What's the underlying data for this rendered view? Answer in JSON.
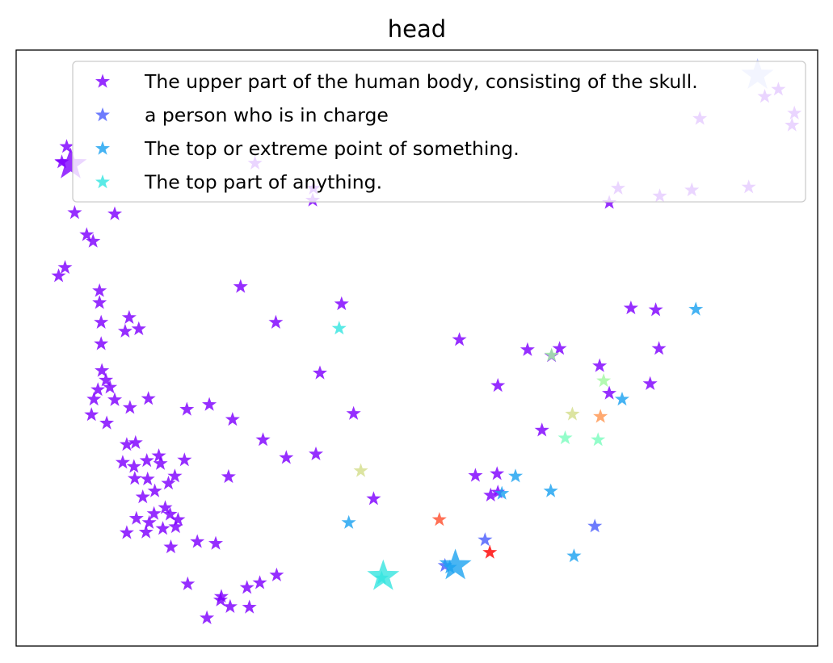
{
  "chart_data": {
    "type": "scatter",
    "title": "head",
    "xlabel": "",
    "ylabel": "",
    "xlim": [
      0,
      100
    ],
    "ylim": [
      0,
      100
    ],
    "grid": false,
    "axis_ticks": false,
    "marker": "star",
    "legend": {
      "placement": "top-right",
      "entries": [
        {
          "label": "The upper part of the human body, consisting of the skull.",
          "color": "#7f00ff"
        },
        {
          "label": "a person who is in charge",
          "color": "#4c5efc"
        },
        {
          "label": "The top or extreme point of something.",
          "color": "#1ca2f0"
        },
        {
          "label": "The top part of anything.",
          "color": "#36e5e0"
        }
      ]
    },
    "colors": {
      "violet": "#7f00ff",
      "blue": "#4c5efc",
      "azure": "#1ca2f0",
      "cyan": "#36e5e0",
      "mint": "#7cfcbe",
      "lightgreen": "#a4f8a0",
      "khaki": "#d4de8c",
      "orange": "#ff9650",
      "redorange": "#ff5030",
      "red": "#ff0000"
    },
    "series": [
      {
        "name": "The upper part of the human body, consisting of the skull.",
        "color": "#7f00ff",
        "points": [
          [
            6.3,
            83.8
          ],
          [
            5.7,
            81.2
          ],
          [
            7.3,
            72.7
          ],
          [
            8.8,
            69.0
          ],
          [
            6.1,
            63.5
          ],
          [
            5.3,
            62.1
          ],
          [
            9.6,
            67.9
          ],
          [
            10.4,
            59.6
          ],
          [
            10.4,
            57.6
          ],
          [
            10.6,
            54.3
          ],
          [
            10.6,
            50.7
          ],
          [
            10.7,
            46.2
          ],
          [
            11.2,
            44.6
          ],
          [
            10.2,
            43.0
          ],
          [
            11.7,
            43.4
          ],
          [
            12.3,
            41.3
          ],
          [
            9.7,
            41.4
          ],
          [
            9.4,
            38.8
          ],
          [
            11.3,
            37.4
          ],
          [
            14.2,
            40.0
          ],
          [
            16.5,
            41.5
          ],
          [
            14.1,
            55.1
          ],
          [
            13.6,
            52.8
          ],
          [
            15.3,
            53.2
          ],
          [
            13.8,
            33.8
          ],
          [
            14.9,
            34.1
          ],
          [
            13.3,
            30.8
          ],
          [
            14.7,
            30.1
          ],
          [
            17.8,
            31.9
          ],
          [
            16.3,
            31.1
          ],
          [
            18.0,
            30.6
          ],
          [
            14.8,
            28.1
          ],
          [
            16.4,
            28.0
          ],
          [
            19.0,
            27.3
          ],
          [
            19.8,
            28.5
          ],
          [
            21.0,
            31.2
          ],
          [
            15.8,
            25.0
          ],
          [
            17.3,
            26.0
          ],
          [
            18.6,
            23.2
          ],
          [
            19.2,
            22.1
          ],
          [
            17.2,
            22.2
          ],
          [
            15.0,
            21.4
          ],
          [
            16.6,
            20.7
          ],
          [
            20.2,
            21.2
          ],
          [
            19.9,
            20.0
          ],
          [
            18.3,
            19.7
          ],
          [
            13.8,
            19.0
          ],
          [
            16.2,
            19.1
          ],
          [
            19.3,
            16.6
          ],
          [
            22.6,
            17.5
          ],
          [
            24.9,
            17.2
          ],
          [
            21.3,
            39.7
          ],
          [
            24.1,
            40.5
          ],
          [
            27.0,
            38.0
          ],
          [
            26.5,
            28.4
          ],
          [
            30.8,
            34.6
          ],
          [
            33.7,
            31.6
          ],
          [
            37.4,
            32.2
          ],
          [
            37.9,
            45.8
          ],
          [
            28.0,
            60.3
          ],
          [
            32.4,
            54.3
          ],
          [
            40.6,
            57.4
          ],
          [
            42.1,
            39.0
          ],
          [
            44.6,
            24.7
          ],
          [
            21.4,
            10.4
          ],
          [
            23.8,
            4.7
          ],
          [
            25.5,
            7.7
          ],
          [
            25.6,
            8.3
          ],
          [
            26.7,
            6.6
          ],
          [
            29.1,
            6.5
          ],
          [
            28.8,
            9.8
          ],
          [
            30.4,
            10.6
          ],
          [
            32.5,
            11.9
          ],
          [
            55.3,
            51.4
          ],
          [
            60.1,
            43.7
          ],
          [
            63.8,
            49.7
          ],
          [
            66.8,
            48.7
          ],
          [
            67.8,
            49.9
          ],
          [
            72.8,
            47.0
          ],
          [
            76.7,
            56.7
          ],
          [
            79.8,
            56.4
          ],
          [
            80.2,
            49.9
          ],
          [
            79.1,
            44.0
          ],
          [
            74.0,
            42.4
          ],
          [
            65.6,
            36.2
          ],
          [
            60.1,
            25.8
          ],
          [
            57.3,
            28.6
          ],
          [
            60.0,
            28.9
          ],
          [
            59.2,
            25.3
          ],
          [
            12.3,
            72.5
          ],
          [
            29.8,
            81.0
          ],
          [
            37.1,
            76.8
          ],
          [
            37.0,
            74.8
          ],
          [
            74.0,
            74.4
          ],
          [
            80.3,
            75.5
          ],
          [
            75.1,
            76.8
          ],
          [
            84.3,
            76.5
          ],
          [
            91.4,
            77.0
          ],
          [
            85.3,
            88.5
          ],
          [
            93.4,
            92.2
          ],
          [
            95.1,
            93.4
          ],
          [
            97.1,
            89.4
          ],
          [
            96.8,
            87.4
          ]
        ]
      },
      {
        "name": "a person who is in charge",
        "color": "#4c5efc",
        "points": [
          [
            58.5,
            17.8
          ],
          [
            72.2,
            20.1
          ],
          [
            53.5,
            13.5
          ]
        ]
      },
      {
        "name": "The top or extreme point of something.",
        "color": "#1ca2f0",
        "points": [
          [
            84.8,
            56.5
          ],
          [
            75.6,
            41.4
          ],
          [
            62.3,
            28.5
          ],
          [
            60.6,
            25.6
          ],
          [
            66.7,
            26.0
          ],
          [
            41.5,
            20.7
          ],
          [
            69.6,
            15.1
          ],
          [
            54.1,
            13.2
          ]
        ]
      },
      {
        "name": "The top part of anything.",
        "color": "#36e5e0",
        "points": [
          [
            40.3,
            53.3
          ],
          [
            45.6,
            11.4
          ]
        ]
      },
      {
        "name": "",
        "color": "#7cfcbe",
        "points": [
          [
            68.5,
            34.9
          ],
          [
            72.6,
            34.6
          ]
        ]
      },
      {
        "name": "",
        "color": "#a4f8a0",
        "points": [
          [
            66.8,
            48.8
          ],
          [
            73.3,
            44.5
          ]
        ]
      },
      {
        "name": "",
        "color": "#d4de8c",
        "points": [
          [
            43.0,
            29.4
          ],
          [
            69.4,
            38.9
          ]
        ]
      },
      {
        "name": "",
        "color": "#ff9650",
        "points": [
          [
            72.9,
            38.5
          ]
        ]
      },
      {
        "name": "",
        "color": "#ff5030",
        "points": [
          [
            52.8,
            21.2
          ]
        ]
      },
      {
        "name": "",
        "color": "#ff0000",
        "points": [
          [
            59.1,
            15.7
          ]
        ]
      }
    ],
    "highlighted_points": [
      {
        "color": "#7f00ff",
        "point": [
          6.8,
          80.8
        ]
      },
      {
        "color": "#1ca2f0",
        "point": [
          54.8,
          13.5
        ]
      },
      {
        "color": "#36e5e0",
        "point": [
          45.8,
          11.7
        ]
      },
      {
        "color": "#b4c0ff",
        "point": [
          92.5,
          95.8
        ]
      }
    ]
  }
}
